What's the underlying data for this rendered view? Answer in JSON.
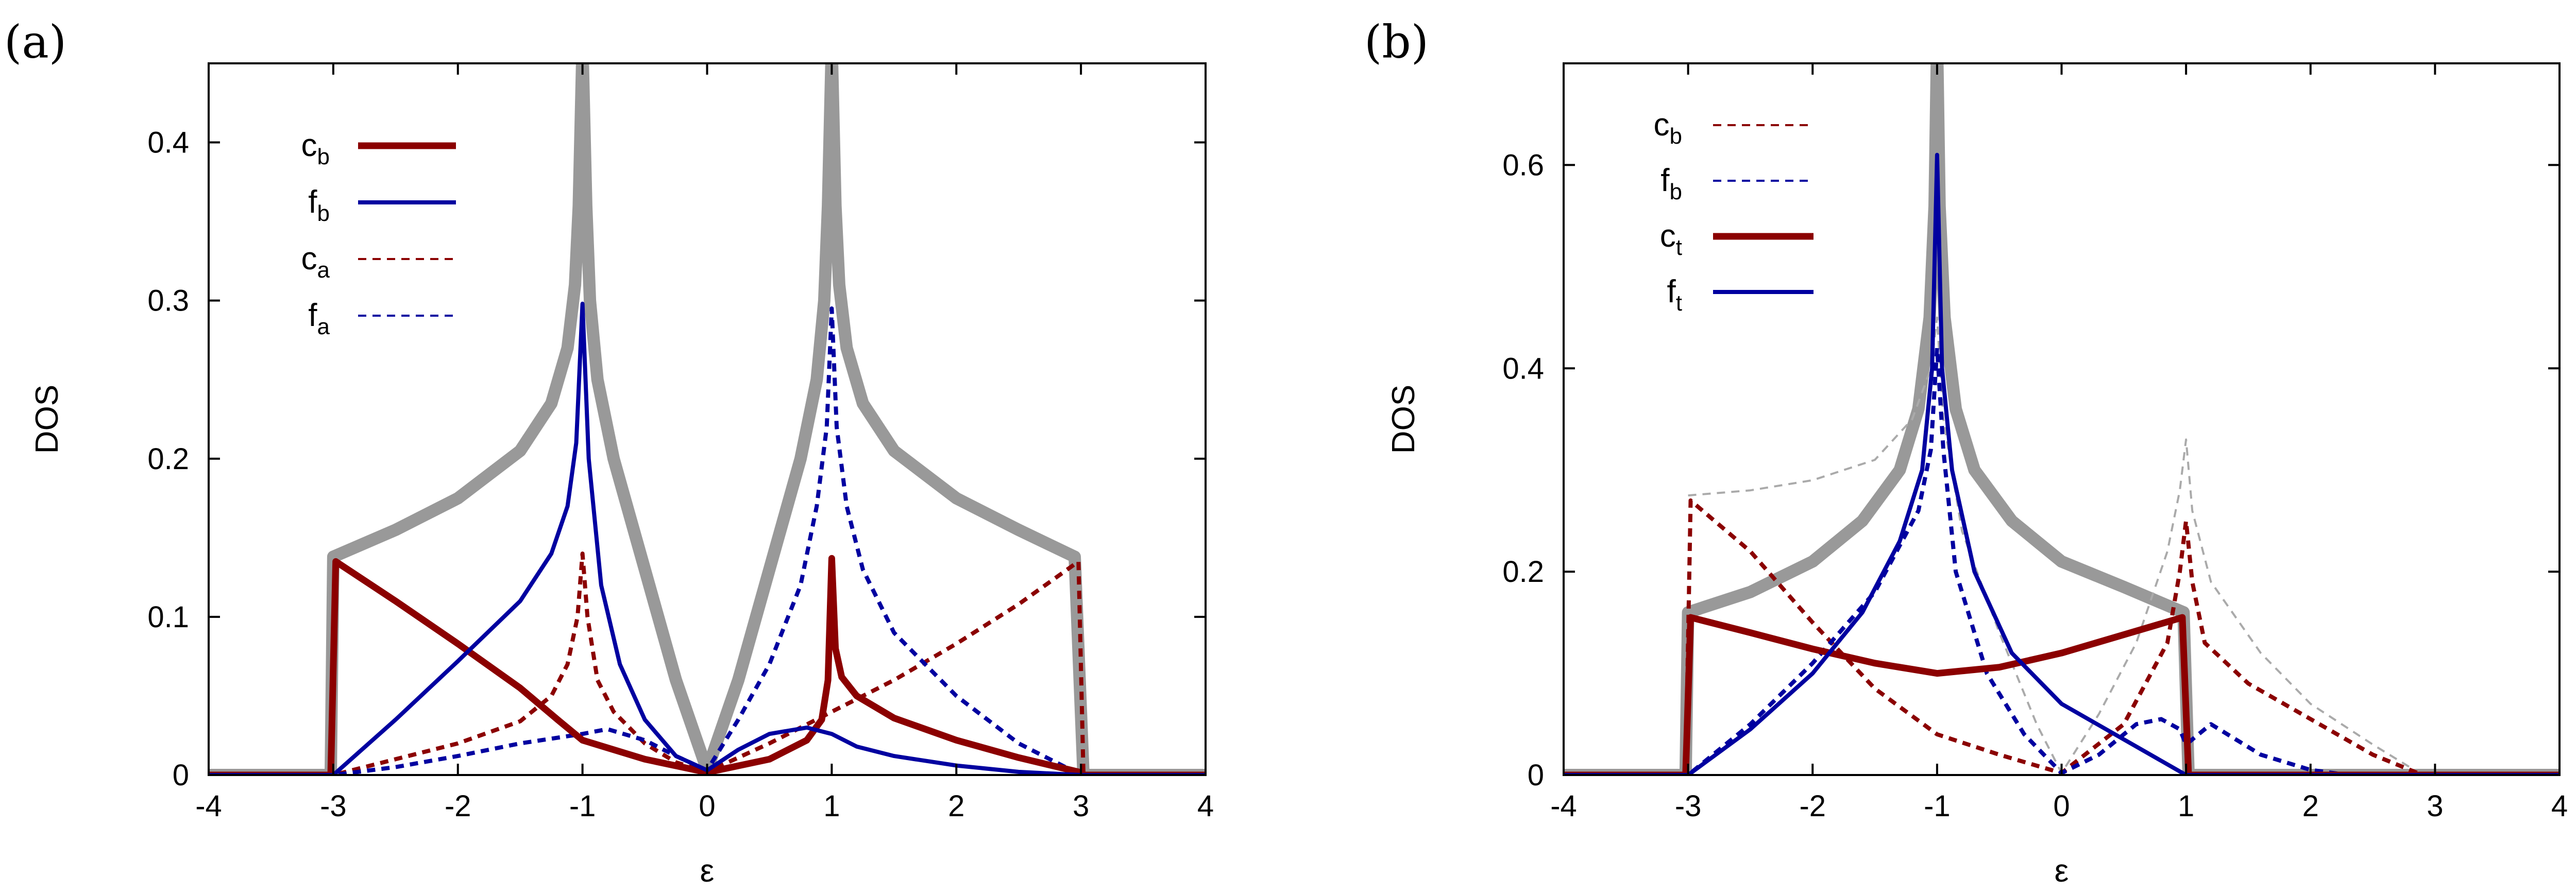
{
  "figure": {
    "panel_labels": [
      "(a)",
      "(b)"
    ]
  },
  "chart_data": [
    {
      "type": "line",
      "panel": "(a)",
      "xlabel": "ε",
      "ylabel": "DOS",
      "xlim": [
        -4,
        4
      ],
      "ylim": [
        0,
        0.45
      ],
      "xticks": [
        -4,
        -3,
        -2,
        -1,
        0,
        1,
        2,
        3,
        4
      ],
      "xtick_labels": [
        "-4",
        "-3",
        "-2",
        "-1",
        "0",
        "1",
        "2",
        "3",
        "4"
      ],
      "yticks": [
        0,
        0.1,
        0.2,
        0.3,
        0.4
      ],
      "ytick_labels": [
        "0",
        "0.1",
        "0.2",
        "0.3",
        "0.4"
      ],
      "legend_position": "top-left",
      "series": [
        {
          "name": "total",
          "legend": false,
          "color": "#999999",
          "style": "solid",
          "weight": "thick",
          "x": [
            -4,
            -3.02,
            -3,
            -2.5,
            -2,
            -1.5,
            -1.25,
            -1.12,
            -1.06,
            -1.03,
            -1.0,
            -0.97,
            -0.94,
            -0.88,
            -0.75,
            -0.5,
            -0.25,
            0,
            0.25,
            0.5,
            0.75,
            0.88,
            0.94,
            0.97,
            1.0,
            1.03,
            1.06,
            1.12,
            1.25,
            1.5,
            2,
            2.5,
            2.95,
            3.02,
            3.05,
            4
          ],
          "y": [
            0,
            0,
            0.138,
            0.155,
            0.175,
            0.205,
            0.235,
            0.27,
            0.31,
            0.36,
            0.46,
            0.36,
            0.3,
            0.25,
            0.2,
            0.13,
            0.06,
            0.003,
            0.06,
            0.13,
            0.2,
            0.25,
            0.3,
            0.36,
            0.46,
            0.36,
            0.31,
            0.27,
            0.235,
            0.205,
            0.175,
            0.155,
            0.138,
            0.0,
            0,
            0
          ]
        },
        {
          "name": "c_b",
          "legend": true,
          "label": "c",
          "sub": "b",
          "color": "#8b0000",
          "style": "solid",
          "weight": "bold",
          "x": [
            -4,
            -3.02,
            -2.98,
            -2.5,
            -2,
            -1.5,
            -1.2,
            -1.0,
            -0.5,
            -0.02,
            0.02,
            0.5,
            0.8,
            0.92,
            0.97,
            1.0,
            1.03,
            1.08,
            1.2,
            1.5,
            2,
            2.5,
            2.98,
            3.02,
            4
          ],
          "y": [
            0,
            0,
            0.135,
            0.11,
            0.083,
            0.055,
            0.035,
            0.022,
            0.01,
            0.002,
            0.002,
            0.01,
            0.022,
            0.035,
            0.06,
            0.137,
            0.08,
            0.062,
            0.05,
            0.036,
            0.022,
            0.011,
            0.002,
            0,
            0
          ]
        },
        {
          "name": "f_b",
          "legend": true,
          "label": "f",
          "sub": "b",
          "color": "#0000a0",
          "style": "solid",
          "weight": "normal",
          "x": [
            -4,
            -3.0,
            -2.5,
            -2,
            -1.5,
            -1.25,
            -1.12,
            -1.05,
            -1.0,
            -0.95,
            -0.85,
            -0.7,
            -0.5,
            -0.25,
            0,
            0.25,
            0.5,
            0.8,
            1.0,
            1.2,
            1.5,
            2,
            2.5,
            3.0,
            4
          ],
          "y": [
            0,
            0,
            0.035,
            0.072,
            0.11,
            0.14,
            0.17,
            0.21,
            0.298,
            0.2,
            0.12,
            0.07,
            0.035,
            0.012,
            0.003,
            0.016,
            0.026,
            0.03,
            0.026,
            0.018,
            0.012,
            0.006,
            0.002,
            0,
            0
          ]
        },
        {
          "name": "c_a",
          "legend": true,
          "label": "c",
          "sub": "a",
          "color": "#8b0000",
          "style": "dashed",
          "weight": "normal",
          "x": [
            -4,
            -3.0,
            -2.5,
            -2,
            -1.5,
            -1.25,
            -1.12,
            -1.04,
            -1.0,
            -0.96,
            -0.88,
            -0.75,
            -0.5,
            -0.25,
            0,
            0.5,
            1.0,
            1.5,
            2,
            2.5,
            2.98,
            3.02,
            4
          ],
          "y": [
            0,
            0,
            0.01,
            0.02,
            0.034,
            0.05,
            0.07,
            0.1,
            0.14,
            0.1,
            0.06,
            0.04,
            0.02,
            0.008,
            0.002,
            0.02,
            0.04,
            0.06,
            0.083,
            0.108,
            0.135,
            0,
            0
          ]
        },
        {
          "name": "f_a",
          "legend": true,
          "label": "f",
          "sub": "a",
          "color": "#0000a0",
          "style": "dashed",
          "weight": "normal",
          "x": [
            -4,
            -3.0,
            -2.5,
            -2,
            -1.5,
            -1.0,
            -0.8,
            -0.5,
            -0.25,
            0,
            0.25,
            0.5,
            0.75,
            0.88,
            0.96,
            1.0,
            1.04,
            1.12,
            1.25,
            1.5,
            2,
            2.5,
            3.0,
            4
          ],
          "y": [
            0,
            0,
            0.005,
            0.012,
            0.02,
            0.026,
            0.029,
            0.022,
            0.012,
            0.003,
            0.035,
            0.07,
            0.12,
            0.17,
            0.22,
            0.295,
            0.22,
            0.17,
            0.13,
            0.09,
            0.05,
            0.02,
            0,
            0
          ]
        }
      ]
    },
    {
      "type": "line",
      "panel": "(b)",
      "xlabel": "ε",
      "ylabel": "DOS",
      "xlim": [
        -4,
        4
      ],
      "ylim": [
        0,
        0.7
      ],
      "xticks": [
        -4,
        -3,
        -2,
        -1,
        0,
        1,
        2,
        3,
        4
      ],
      "xtick_labels": [
        "-4",
        "-3",
        "-2",
        "-1",
        "0",
        "1",
        "2",
        "3",
        "4"
      ],
      "yticks": [
        0,
        0.2,
        0.4,
        0.6
      ],
      "ytick_labels": [
        "0",
        "0.2",
        "0.4",
        "0.6"
      ],
      "legend_position": "top-left",
      "series": [
        {
          "name": "total_b",
          "legend": false,
          "color": "#999999",
          "style": "solid",
          "weight": "thick",
          "x": [
            -4,
            -3.02,
            -3,
            -2.5,
            -2,
            -1.6,
            -1.3,
            -1.15,
            -1.06,
            -1.02,
            -1.0,
            -0.98,
            -0.94,
            -0.85,
            -0.7,
            -0.4,
            0,
            0.5,
            0.98,
            1.02,
            1.05,
            4
          ],
          "y": [
            0,
            0,
            0.16,
            0.18,
            0.21,
            0.25,
            0.3,
            0.36,
            0.45,
            0.56,
            0.72,
            0.56,
            0.45,
            0.36,
            0.3,
            0.25,
            0.21,
            0.185,
            0.16,
            0,
            0,
            0
          ]
        },
        {
          "name": "c_b",
          "legend": true,
          "label": "c",
          "sub": "b",
          "color": "#8b0000",
          "style": "dashed",
          "weight": "normal",
          "x": [
            -4,
            -3.02,
            -2.98,
            -2.5,
            -2,
            -1.5,
            -1,
            -0.5,
            0,
            0.5,
            0.85,
            0.95,
            1.0,
            1.05,
            1.15,
            1.5,
            2,
            2.5,
            2.9,
            4
          ],
          "y": [
            0,
            0,
            0.27,
            0.22,
            0.15,
            0.085,
            0.04,
            0.02,
            0.002,
            0.05,
            0.13,
            0.2,
            0.25,
            0.19,
            0.13,
            0.09,
            0.055,
            0.02,
            0,
            0
          ]
        },
        {
          "name": "f_b",
          "legend": true,
          "label": "f",
          "sub": "b",
          "color": "#0000a0",
          "style": "dashed",
          "weight": "normal",
          "x": [
            -4,
            -3.0,
            -2.5,
            -2,
            -1.5,
            -1.15,
            -1.05,
            -1.0,
            -0.95,
            -0.85,
            -0.6,
            -0.3,
            0,
            0.3,
            0.6,
            0.8,
            0.95,
            1.0,
            1.2,
            1.6,
            2.0,
            2.3,
            4
          ],
          "y": [
            0,
            0,
            0.05,
            0.11,
            0.18,
            0.26,
            0.32,
            0.42,
            0.32,
            0.2,
            0.1,
            0.04,
            0.002,
            0.02,
            0.05,
            0.055,
            0.045,
            0.03,
            0.05,
            0.02,
            0.005,
            0,
            0
          ]
        },
        {
          "name": "c_t",
          "legend": true,
          "label": "c",
          "sub": "t",
          "color": "#8b0000",
          "style": "solid",
          "weight": "bold",
          "x": [
            -4,
            -3.02,
            -2.98,
            -2.5,
            -2,
            -1.5,
            -1,
            -0.5,
            0,
            0.5,
            0.97,
            1.02,
            4
          ],
          "y": [
            0,
            0,
            0.155,
            0.14,
            0.124,
            0.11,
            0.1,
            0.106,
            0.12,
            0.138,
            0.155,
            0,
            0
          ]
        },
        {
          "name": "f_t",
          "legend": true,
          "label": "f",
          "sub": "t",
          "color": "#0000a0",
          "style": "solid",
          "weight": "normal",
          "x": [
            -4,
            -3.0,
            -2.5,
            -2,
            -1.6,
            -1.3,
            -1.12,
            -1.04,
            -1.0,
            -0.96,
            -0.88,
            -0.7,
            -0.4,
            0,
            0.5,
            1.0,
            4
          ],
          "y": [
            0,
            0,
            0.045,
            0.1,
            0.16,
            0.23,
            0.3,
            0.4,
            0.61,
            0.4,
            0.3,
            0.2,
            0.12,
            0.07,
            0.035,
            0,
            0
          ]
        },
        {
          "name": "ghost",
          "legend": false,
          "color": "#aaaaaa",
          "style": "dashed",
          "weight": "thin",
          "x": [
            -3.0,
            -2.5,
            -2.0,
            -1.5,
            -1.2,
            -1.05,
            -1.0,
            -0.95,
            -0.8,
            -0.5,
            -0.2,
            0,
            0.3,
            0.6,
            0.85,
            0.95,
            1.0,
            1.05,
            1.2,
            1.6,
            2.0,
            2.5,
            2.9
          ],
          "y": [
            0.275,
            0.28,
            0.29,
            0.31,
            0.35,
            0.4,
            0.45,
            0.35,
            0.24,
            0.14,
            0.05,
            0.002,
            0.06,
            0.13,
            0.22,
            0.28,
            0.33,
            0.26,
            0.19,
            0.12,
            0.07,
            0.03,
            0
          ]
        }
      ]
    }
  ]
}
